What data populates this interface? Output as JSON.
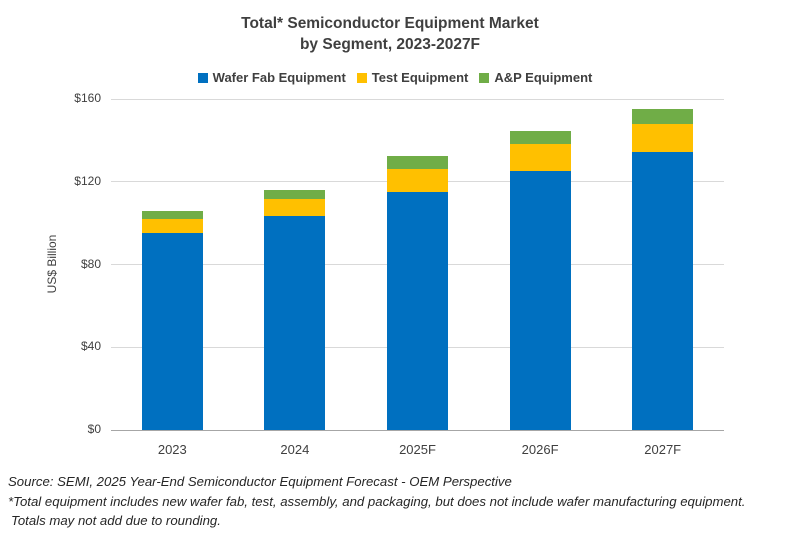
{
  "title": {
    "line1": "Total* Semiconductor Equipment Market",
    "line2": "by Segment, 2023-2027F"
  },
  "axis": {
    "y_label": "US$ Billion",
    "y_ticks": [
      {
        "label": "$0",
        "value": 0
      },
      {
        "label": "$40",
        "value": 40
      },
      {
        "label": "$80",
        "value": 80
      },
      {
        "label": "$120",
        "value": 120
      },
      {
        "label": "$160",
        "value": 160
      }
    ]
  },
  "chart_data": {
    "type": "bar",
    "stacked": true,
    "title": "Total* Semiconductor Equipment Market by Segment, 2023-2027F",
    "ylabel": "US$ Billion",
    "ylim": [
      0,
      160
    ],
    "grid": true,
    "legend_position": "top",
    "categories": [
      "2023",
      "2024",
      "2025F",
      "2026F",
      "2027F"
    ],
    "series": [
      {
        "name": "Wafer Fab Equipment",
        "color": "#0070C0",
        "values": [
          95.4,
          103.5,
          115.0,
          125.2,
          134.4
        ]
      },
      {
        "name": "Test Equipment",
        "color": "#FFC000",
        "values": [
          6.6,
          8.1,
          11.1,
          13.0,
          13.5
        ]
      },
      {
        "name": "A&P Equipment",
        "color": "#70AD47",
        "values": [
          4.0,
          4.4,
          6.3,
          6.3,
          7.3
        ]
      }
    ]
  },
  "footnotes": {
    "source": "Source: SEMI, 2025 Year-End Semiconductor Equipment Forecast - OEM Perspective",
    "note1": "*Total equipment includes new wafer fab, test, assembly, and packaging, but does not include wafer manufacturing equipment.",
    "note2": "Totals may not add due to rounding."
  }
}
